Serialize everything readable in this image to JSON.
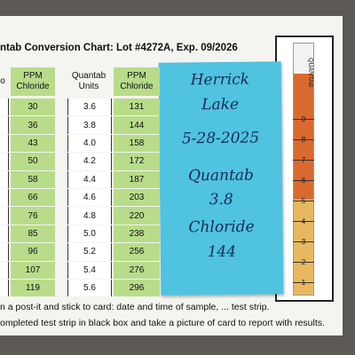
{
  "header": {
    "title": "ntab Conversion Chart: Lot #4272A, Exp. 09/2026"
  },
  "table_left": {
    "headers": [
      "o",
      "PPM Chloride"
    ],
    "rows": [
      "30",
      "36",
      "43",
      "50",
      "58",
      "66",
      "76",
      "85",
      "96",
      "107",
      "119"
    ]
  },
  "table_right": {
    "headers": [
      "Quantab Units",
      "PPM Chloride"
    ],
    "rows": [
      [
        "3.6",
        "131"
      ],
      [
        "3.8",
        "144"
      ],
      [
        "4.0",
        "158"
      ],
      [
        "4.2",
        "172"
      ],
      [
        "4.4",
        "187"
      ],
      [
        "4.6",
        "203"
      ],
      [
        "4.8",
        "220"
      ],
      [
        "5.0",
        "238"
      ],
      [
        "5.2",
        "256"
      ],
      [
        "5.4",
        "276"
      ],
      [
        "5.6",
        "296"
      ]
    ]
  },
  "note": {
    "lines": [
      "Herrick",
      "Lake",
      "5-28-2025",
      "Quantab",
      "3.8",
      "Chloride",
      "144"
    ]
  },
  "strip": {
    "label": "QUANTAB",
    "scale": [
      "9",
      "8",
      "7",
      "6",
      "5",
      "4",
      "3",
      "2",
      "1"
    ]
  },
  "footer": {
    "lines": [
      "n a post-it and stick to card: date and time of sample, ... test strip.",
      "ompleted test strip in black box and take a picture of card to report with results."
    ]
  }
}
